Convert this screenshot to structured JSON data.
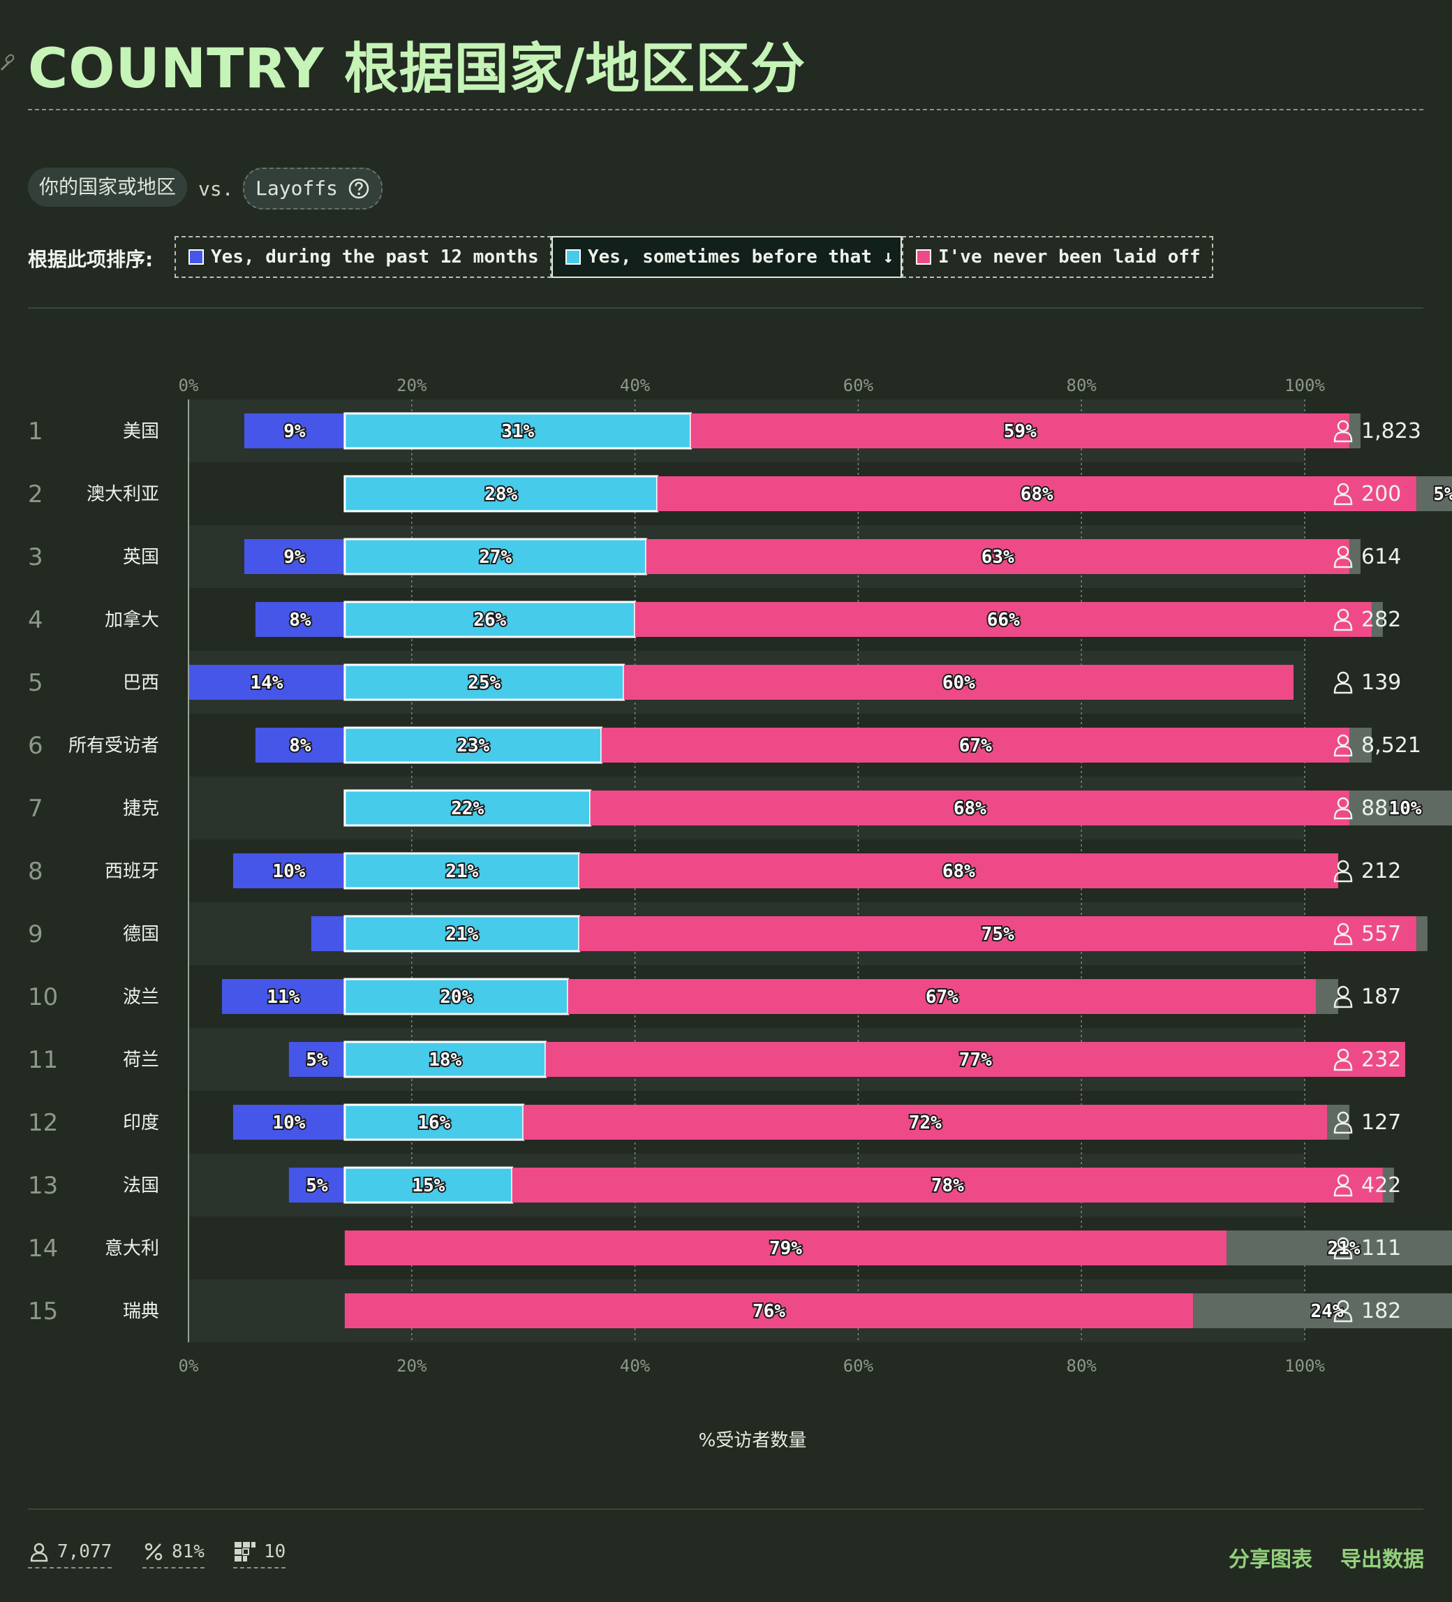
{
  "title": "COUNTRY 根据国家/地区区分",
  "filters": {
    "dimension": "你的国家或地区",
    "vs": "vs.",
    "metric": "Layoffs",
    "help_icon": "question-circle-icon"
  },
  "sort": {
    "label": "根据此项排序:",
    "options": [
      {
        "label": "Yes, during the past 12 months",
        "color": "#4656e8",
        "active": false
      },
      {
        "label": "Yes, sometimes before that ↓",
        "color": "#46cbea",
        "active": true
      },
      {
        "label": "I've never been laid off",
        "color": "#ee4a88",
        "active": false
      }
    ]
  },
  "colors": {
    "past12": "#4656e8",
    "before": "#46cbea",
    "never": "#ee4a88",
    "other": "#5f6a62",
    "background": "#232a22",
    "row_stripe": "#2b332d",
    "accent": "#c6f3b7",
    "link": "#93d07c"
  },
  "chart_data": {
    "type": "bar",
    "orientation": "horizontal",
    "stacked": true,
    "x_ticks": [
      "0%",
      "20%",
      "40%",
      "60%",
      "80%",
      "100%"
    ],
    "xlim": [
      0,
      100
    ],
    "xlabel": "%受访者数量",
    "categories": [
      "美国",
      "澳大利亚",
      "英国",
      "加拿大",
      "巴西",
      "所有受访者",
      "捷克",
      "西班牙",
      "德国",
      "波兰",
      "荷兰",
      "印度",
      "法国",
      "意大利",
      "瑞典"
    ],
    "ranks": [
      "1",
      "2",
      "3",
      "4",
      "5",
      "6",
      "7",
      "8",
      "9",
      "10",
      "11",
      "12",
      "13",
      "14",
      "15"
    ],
    "respondents": [
      "1,823",
      "200",
      "614",
      "282",
      "139",
      "8,521",
      "88",
      "212",
      "557",
      "187",
      "232",
      "127",
      "422",
      "111",
      "182"
    ],
    "respondent_icon": "person-icon",
    "series": [
      {
        "name": "Yes, during the past 12 months",
        "values": [
          9,
          0,
          9,
          8,
          14,
          8,
          0,
          10,
          3,
          11,
          5,
          10,
          5,
          0,
          0
        ],
        "labels": [
          "9%",
          "",
          "9%",
          "8%",
          "14%",
          "8%",
          "",
          "10%",
          "",
          "11%",
          "5%",
          "10%",
          "5%",
          "",
          ""
        ]
      },
      {
        "name": "Yes, sometimes before that",
        "values": [
          31,
          28,
          27,
          26,
          25,
          23,
          22,
          21,
          21,
          20,
          18,
          16,
          15,
          0,
          0
        ],
        "labels": [
          "31%",
          "28%",
          "27%",
          "26%",
          "25%",
          "23%",
          "22%",
          "21%",
          "21%",
          "20%",
          "18%",
          "16%",
          "15%",
          "",
          ""
        ]
      },
      {
        "name": "I've never been laid off",
        "values": [
          59,
          68,
          63,
          66,
          60,
          67,
          68,
          68,
          75,
          67,
          77,
          72,
          78,
          79,
          76
        ],
        "labels": [
          "59%",
          "68%",
          "63%",
          "66%",
          "60%",
          "67%",
          "68%",
          "68%",
          "75%",
          "67%",
          "77%",
          "72%",
          "78%",
          "79%",
          "76%"
        ]
      },
      {
        "name": "",
        "values": [
          1,
          5,
          1,
          1,
          0,
          2,
          10,
          0,
          1,
          2,
          0,
          2,
          1,
          21,
          24
        ],
        "labels": [
          "",
          "5%",
          "",
          "",
          "",
          "",
          "10%",
          "",
          "",
          "",
          "",
          "",
          "",
          "21%",
          "24%"
        ]
      }
    ]
  },
  "footer": {
    "stats": [
      {
        "icon": "person-icon",
        "value": "7,077"
      },
      {
        "icon": "percent-icon",
        "value": "81%"
      },
      {
        "icon": "grid-icon",
        "value": "10"
      }
    ],
    "share_label": "分享图表",
    "export_label": "导出数据"
  }
}
